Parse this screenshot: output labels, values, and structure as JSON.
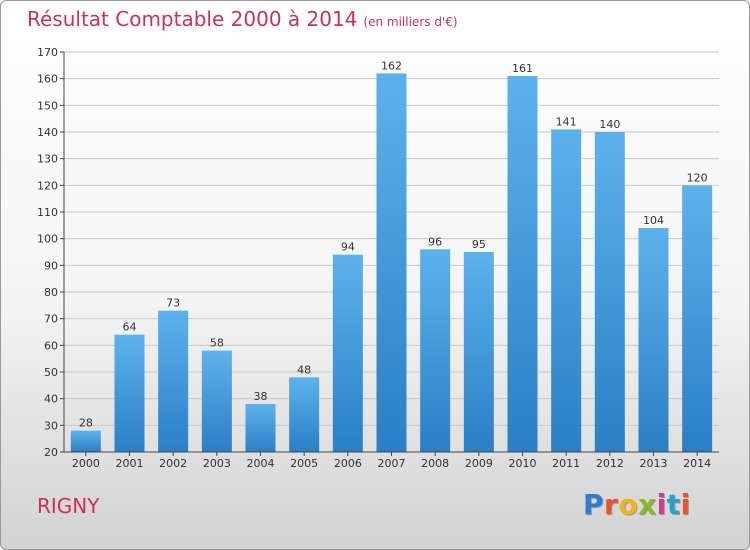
{
  "header": {
    "title": "Résultat Comptable 2000 à 2014",
    "subtitle": "(en milliers d'€)"
  },
  "footer": {
    "city": "RIGNY",
    "brand": "Proxiti",
    "brand_colors": [
      "#2e7bd0",
      "#e8552a",
      "#f0b41c",
      "#86b82a",
      "#d63a8a",
      "#2aa0d0",
      "#e8552a"
    ]
  },
  "colors": {
    "title": "#c8325a",
    "bar_light": "#5db2ec",
    "bar_dark": "#2a7fc6",
    "grid": "#c8c8c8",
    "axis": "#444444"
  },
  "chart_data": {
    "type": "bar",
    "title": "Résultat Comptable 2000 à 2014",
    "subtitle": "(en milliers d'€)",
    "xlabel": "",
    "ylabel": "",
    "categories": [
      "2000",
      "2001",
      "2002",
      "2003",
      "2004",
      "2005",
      "2006",
      "2007",
      "2008",
      "2009",
      "2010",
      "2011",
      "2012",
      "2013",
      "2014"
    ],
    "values": [
      28,
      64,
      73,
      58,
      38,
      48,
      94,
      162,
      96,
      95,
      161,
      141,
      140,
      104,
      120
    ],
    "ylim": [
      20,
      170
    ],
    "yticks": [
      20,
      30,
      40,
      50,
      60,
      70,
      80,
      90,
      100,
      110,
      120,
      130,
      140,
      150,
      160,
      170
    ],
    "grid": true,
    "data_labels": true
  }
}
